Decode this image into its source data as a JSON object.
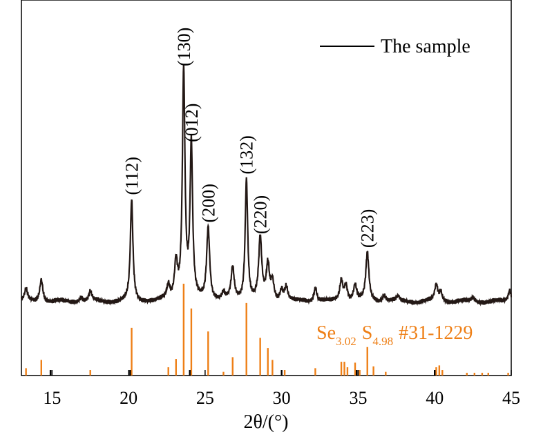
{
  "chart_data": {
    "type": "line",
    "xlabel": "2θ/(°)",
    "xlim": [
      13,
      45
    ],
    "xticks": [
      15,
      20,
      25,
      30,
      35,
      40,
      45
    ],
    "grid": false,
    "legend_position": "top-right",
    "colors": {
      "sample": "#231815",
      "reference": "#ee7f16"
    },
    "series": [
      {
        "name": "The sample",
        "peaks": [
          {
            "x": 13.3,
            "y": 0.05
          },
          {
            "x": 14.3,
            "y": 0.1
          },
          {
            "x": 16.9,
            "y": 0.02
          },
          {
            "x": 17.5,
            "y": 0.04
          },
          {
            "x": 20.2,
            "y": 0.44
          },
          {
            "x": 22.6,
            "y": 0.06
          },
          {
            "x": 23.1,
            "y": 0.16
          },
          {
            "x": 23.6,
            "y": 1.0
          },
          {
            "x": 24.1,
            "y": 0.67
          },
          {
            "x": 25.2,
            "y": 0.32
          },
          {
            "x": 26.2,
            "y": 0.03
          },
          {
            "x": 26.8,
            "y": 0.14
          },
          {
            "x": 27.7,
            "y": 0.53
          },
          {
            "x": 28.6,
            "y": 0.27
          },
          {
            "x": 29.1,
            "y": 0.15
          },
          {
            "x": 29.4,
            "y": 0.08
          },
          {
            "x": 30.0,
            "y": 0.05
          },
          {
            "x": 30.3,
            "y": 0.06
          },
          {
            "x": 32.2,
            "y": 0.06
          },
          {
            "x": 33.9,
            "y": 0.09
          },
          {
            "x": 34.2,
            "y": 0.07
          },
          {
            "x": 34.8,
            "y": 0.07
          },
          {
            "x": 35.6,
            "y": 0.21
          },
          {
            "x": 36.7,
            "y": 0.03
          },
          {
            "x": 37.6,
            "y": 0.02
          },
          {
            "x": 40.1,
            "y": 0.07
          },
          {
            "x": 40.4,
            "y": 0.04
          },
          {
            "x": 42.5,
            "y": 0.02
          },
          {
            "x": 44.9,
            "y": 0.05
          }
        ]
      },
      {
        "name": "Se3.02 S4.98 #31-1229",
        "sticks": [
          {
            "x": 13.3,
            "y": 0.08
          },
          {
            "x": 14.3,
            "y": 0.17
          },
          {
            "x": 17.5,
            "y": 0.06
          },
          {
            "x": 20.2,
            "y": 0.52
          },
          {
            "x": 22.6,
            "y": 0.09
          },
          {
            "x": 23.1,
            "y": 0.18
          },
          {
            "x": 23.6,
            "y": 1.0
          },
          {
            "x": 24.1,
            "y": 0.73
          },
          {
            "x": 25.2,
            "y": 0.48
          },
          {
            "x": 26.2,
            "y": 0.04
          },
          {
            "x": 26.8,
            "y": 0.2
          },
          {
            "x": 27.7,
            "y": 0.79
          },
          {
            "x": 28.6,
            "y": 0.41
          },
          {
            "x": 29.1,
            "y": 0.3
          },
          {
            "x": 29.4,
            "y": 0.17
          },
          {
            "x": 30.2,
            "y": 0.06
          },
          {
            "x": 32.2,
            "y": 0.08
          },
          {
            "x": 33.9,
            "y": 0.15
          },
          {
            "x": 34.1,
            "y": 0.15
          },
          {
            "x": 34.3,
            "y": 0.09
          },
          {
            "x": 34.8,
            "y": 0.14
          },
          {
            "x": 35.1,
            "y": 0.06
          },
          {
            "x": 35.6,
            "y": 0.31
          },
          {
            "x": 36.0,
            "y": 0.1
          },
          {
            "x": 36.8,
            "y": 0.04
          },
          {
            "x": 40.1,
            "y": 0.09
          },
          {
            "x": 40.3,
            "y": 0.11
          },
          {
            "x": 40.5,
            "y": 0.06
          },
          {
            "x": 42.1,
            "y": 0.03
          },
          {
            "x": 42.6,
            "y": 0.03
          },
          {
            "x": 43.1,
            "y": 0.03
          },
          {
            "x": 43.5,
            "y": 0.03
          },
          {
            "x": 44.8,
            "y": 0.03
          }
        ],
        "black_sticks": [
          {
            "x": 14.9,
            "y": 0.06
          },
          {
            "x": 20.1,
            "y": 0.06
          },
          {
            "x": 24.0,
            "y": 0.06
          },
          {
            "x": 30.0,
            "y": 0.06
          },
          {
            "x": 34.9,
            "y": 0.06
          },
          {
            "x": 40.0,
            "y": 0.06
          }
        ]
      }
    ],
    "peak_labels": [
      {
        "text": "(112)",
        "x": 20.2
      },
      {
        "text": "(130)",
        "x": 23.6
      },
      {
        "text": "(012)",
        "x": 24.1
      },
      {
        "text": "(200)",
        "x": 25.2
      },
      {
        "text": "(132)",
        "x": 27.7
      },
      {
        "text": "(220)",
        "x": 28.6
      },
      {
        "text": "(223)",
        "x": 35.6
      }
    ],
    "legend": {
      "label": "The sample"
    },
    "reference_label": {
      "element1": "Se",
      "sub1": "3.02",
      "element2": "S",
      "sub2": "4.98",
      "card": "#31-1229"
    }
  }
}
